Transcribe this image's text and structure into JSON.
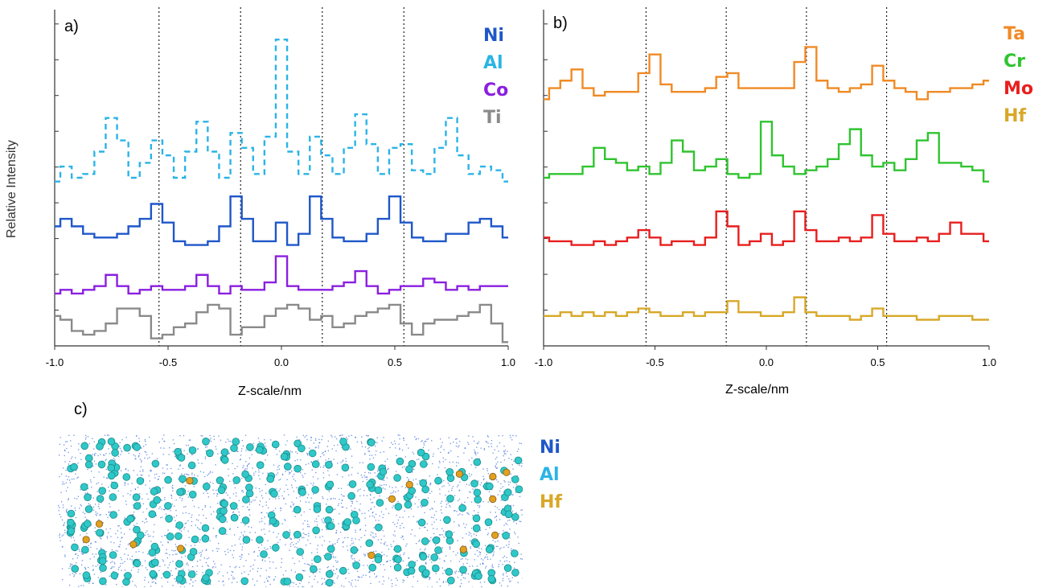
{
  "figure": {
    "panel_a_label": "a)",
    "panel_b_label": "b)",
    "panel_c_label": "c)",
    "ylabel": "Relative Intensity",
    "xlabel": "Z-scale/nm"
  },
  "colors": {
    "Ni": "#1f57c9",
    "Al": "#2ab4e6",
    "Co": "#8a1fe0",
    "Ti": "#8a8a8a",
    "Ta": "#f08a24",
    "Cr": "#2fc42f",
    "Mo": "#e81e1e",
    "Hf": "#d8a828",
    "atom_al": "#2fc8c8",
    "atom_hf": "#e0a020",
    "atom_ni": "#2f62d8"
  },
  "chart_data": [
    {
      "type": "line",
      "panel": "a)",
      "xlabel": "Z-scale/nm",
      "ylabel": "Relative Intensity",
      "xlim": [
        -1.0,
        1.0
      ],
      "x_ticks": [
        "-1.0",
        "-0.5",
        "0.0",
        "0.5",
        "1.0"
      ],
      "vlines": [
        -0.54,
        -0.18,
        0.18,
        0.54
      ],
      "legend": [
        "Ni",
        "Al",
        "Co",
        "Ti"
      ],
      "series": [
        {
          "name": "Al",
          "style": "dashed",
          "x": [
            -1.0,
            -0.95,
            -0.9,
            -0.85,
            -0.8,
            -0.75,
            -0.7,
            -0.65,
            -0.6,
            -0.55,
            -0.5,
            -0.45,
            -0.4,
            -0.35,
            -0.3,
            -0.25,
            -0.2,
            -0.15,
            -0.1,
            -0.05,
            0.0,
            0.05,
            0.1,
            0.15,
            0.2,
            0.25,
            0.3,
            0.35,
            0.4,
            0.45,
            0.5,
            0.55,
            0.6,
            0.65,
            0.7,
            0.75,
            0.8,
            0.85,
            0.9,
            0.95,
            1.0
          ],
          "y": [
            4.4,
            4.8,
            4.5,
            4.6,
            5.2,
            6.1,
            5.5,
            4.5,
            4.9,
            5.5,
            5.1,
            4.5,
            5.2,
            6.0,
            5.2,
            4.5,
            5.7,
            5.3,
            4.6,
            5.6,
            8.2,
            5.2,
            4.6,
            5.6,
            5.1,
            4.6,
            5.3,
            6.2,
            5.4,
            4.6,
            5.3,
            5.4,
            4.7,
            4.6,
            5.3,
            6.1,
            5.1,
            4.6,
            4.8,
            4.7,
            4.4
          ]
        },
        {
          "name": "Ni",
          "style": "solid",
          "x": [
            -1.0,
            -0.95,
            -0.9,
            -0.85,
            -0.8,
            -0.75,
            -0.7,
            -0.65,
            -0.6,
            -0.55,
            -0.5,
            -0.45,
            -0.4,
            -0.35,
            -0.3,
            -0.25,
            -0.2,
            -0.15,
            -0.1,
            -0.05,
            0.0,
            0.05,
            0.1,
            0.15,
            0.2,
            0.25,
            0.3,
            0.35,
            0.4,
            0.45,
            0.5,
            0.55,
            0.6,
            0.65,
            0.7,
            0.75,
            0.8,
            0.85,
            0.9,
            0.95,
            1.0
          ],
          "y": [
            3.2,
            3.4,
            3.2,
            3.0,
            2.9,
            2.9,
            3.0,
            3.2,
            3.4,
            3.8,
            3.3,
            2.8,
            2.7,
            2.7,
            2.8,
            3.2,
            4.0,
            3.4,
            2.8,
            2.8,
            3.3,
            2.7,
            3.0,
            4.0,
            3.4,
            2.9,
            2.8,
            2.8,
            3.0,
            3.4,
            4.0,
            3.3,
            2.9,
            2.8,
            2.8,
            3.0,
            3.0,
            3.3,
            3.4,
            3.2,
            2.9
          ]
        },
        {
          "name": "Co",
          "style": "solid",
          "x": [
            -1.0,
            -0.95,
            -0.9,
            -0.85,
            -0.8,
            -0.75,
            -0.7,
            -0.65,
            -0.6,
            -0.55,
            -0.5,
            -0.45,
            -0.4,
            -0.35,
            -0.3,
            -0.25,
            -0.2,
            -0.15,
            -0.1,
            -0.05,
            0.0,
            0.05,
            0.1,
            0.15,
            0.2,
            0.25,
            0.3,
            0.35,
            0.4,
            0.45,
            0.5,
            0.55,
            0.6,
            0.65,
            0.7,
            0.75,
            0.8,
            0.85,
            0.9,
            0.95,
            1.0
          ],
          "y": [
            1.4,
            1.5,
            1.4,
            1.5,
            1.6,
            1.9,
            1.6,
            1.4,
            1.5,
            1.6,
            1.5,
            1.5,
            1.6,
            1.9,
            1.6,
            1.4,
            1.6,
            1.5,
            1.5,
            1.7,
            2.4,
            1.6,
            1.5,
            1.5,
            1.5,
            1.6,
            1.7,
            2.0,
            1.6,
            1.4,
            1.5,
            1.6,
            1.6,
            1.8,
            1.7,
            1.5,
            1.6,
            1.5,
            1.6,
            1.6,
            1.6
          ]
        },
        {
          "name": "Ti",
          "style": "solid",
          "x": [
            -1.0,
            -0.95,
            -0.9,
            -0.85,
            -0.8,
            -0.75,
            -0.7,
            -0.65,
            -0.6,
            -0.55,
            -0.5,
            -0.45,
            -0.4,
            -0.35,
            -0.3,
            -0.25,
            -0.2,
            -0.15,
            -0.1,
            -0.05,
            0.0,
            0.05,
            0.1,
            0.15,
            0.2,
            0.25,
            0.3,
            0.35,
            0.4,
            0.45,
            0.5,
            0.55,
            0.6,
            0.65,
            0.7,
            0.75,
            0.8,
            0.85,
            0.9,
            0.95,
            1.0
          ],
          "y": [
            0.8,
            0.7,
            0.4,
            0.3,
            0.4,
            0.6,
            1.0,
            1.0,
            0.8,
            0.2,
            0.3,
            0.5,
            0.6,
            0.9,
            1.1,
            1.0,
            0.3,
            0.5,
            0.5,
            0.8,
            1.0,
            1.1,
            1.0,
            0.7,
            0.8,
            0.5,
            0.6,
            0.8,
            0.9,
            1.0,
            1.1,
            0.6,
            0.3,
            0.6,
            0.7,
            0.7,
            0.8,
            0.9,
            1.1,
            0.6,
            0.1
          ]
        }
      ]
    },
    {
      "type": "line",
      "panel": "b)",
      "xlabel": "Z-scale/nm",
      "xlim": [
        -1.0,
        1.0
      ],
      "x_ticks": [
        "-1.0",
        "-0.5",
        "0.0",
        "0.5",
        "1.0"
      ],
      "vlines": [
        -0.54,
        -0.18,
        0.18,
        0.54
      ],
      "legend": [
        "Ta",
        "Cr",
        "Mo",
        "Hf"
      ],
      "series": [
        {
          "name": "Ta",
          "x": [
            -1.0,
            -0.95,
            -0.9,
            -0.85,
            -0.8,
            -0.75,
            -0.7,
            -0.65,
            -0.6,
            -0.55,
            -0.5,
            -0.45,
            -0.4,
            -0.35,
            -0.3,
            -0.25,
            -0.2,
            -0.15,
            -0.1,
            -0.05,
            0.0,
            0.05,
            0.1,
            0.15,
            0.2,
            0.25,
            0.3,
            0.35,
            0.4,
            0.45,
            0.5,
            0.55,
            0.6,
            0.65,
            0.7,
            0.75,
            0.8,
            0.85,
            0.9,
            0.95,
            1.0
          ],
          "y": [
            6.6,
            6.9,
            7.1,
            7.4,
            6.9,
            6.7,
            6.8,
            6.8,
            6.8,
            7.3,
            7.8,
            7.0,
            6.8,
            6.8,
            6.8,
            6.9,
            7.2,
            7.3,
            6.9,
            6.9,
            6.9,
            6.9,
            6.9,
            7.6,
            8.0,
            7.1,
            6.9,
            6.8,
            6.9,
            7.0,
            7.5,
            7.1,
            6.9,
            6.8,
            6.6,
            6.8,
            6.8,
            6.9,
            6.9,
            7.0,
            7.1
          ]
        },
        {
          "name": "Cr",
          "x": [
            -1.0,
            -0.95,
            -0.9,
            -0.85,
            -0.8,
            -0.75,
            -0.7,
            -0.65,
            -0.6,
            -0.55,
            -0.5,
            -0.45,
            -0.4,
            -0.35,
            -0.3,
            -0.25,
            -0.2,
            -0.15,
            -0.1,
            -0.05,
            0.0,
            0.05,
            0.1,
            0.15,
            0.2,
            0.25,
            0.3,
            0.35,
            0.4,
            0.45,
            0.5,
            0.55,
            0.6,
            0.65,
            0.7,
            0.75,
            0.8,
            0.85,
            0.9,
            0.95,
            1.0
          ],
          "y": [
            4.5,
            4.6,
            4.6,
            4.6,
            4.8,
            5.3,
            5.0,
            4.9,
            4.7,
            4.8,
            4.6,
            4.9,
            5.5,
            5.2,
            4.7,
            4.8,
            5.0,
            4.6,
            4.5,
            4.6,
            6.0,
            5.1,
            4.8,
            4.6,
            4.7,
            4.8,
            5.0,
            5.4,
            5.8,
            5.1,
            4.8,
            4.9,
            4.7,
            5.0,
            5.5,
            5.7,
            4.9,
            4.9,
            4.8,
            4.7,
            4.4
          ]
        },
        {
          "name": "Mo",
          "x": [
            -1.0,
            -0.95,
            -0.9,
            -0.85,
            -0.8,
            -0.75,
            -0.7,
            -0.65,
            -0.6,
            -0.55,
            -0.5,
            -0.45,
            -0.4,
            -0.35,
            -0.3,
            -0.25,
            -0.2,
            -0.15,
            -0.1,
            -0.05,
            0.0,
            0.05,
            0.1,
            0.15,
            0.2,
            0.25,
            0.3,
            0.35,
            0.4,
            0.45,
            0.5,
            0.55,
            0.6,
            0.65,
            0.7,
            0.75,
            0.8,
            0.85,
            0.9,
            0.95,
            1.0
          ],
          "y": [
            2.9,
            2.8,
            2.8,
            2.7,
            2.7,
            2.8,
            2.7,
            2.8,
            2.9,
            3.1,
            2.9,
            2.7,
            2.8,
            2.8,
            2.7,
            2.9,
            3.6,
            3.2,
            2.7,
            2.8,
            3.0,
            2.7,
            2.8,
            3.6,
            3.1,
            2.8,
            2.8,
            2.9,
            2.8,
            2.9,
            3.5,
            3.0,
            2.8,
            2.8,
            2.9,
            2.8,
            3.0,
            3.3,
            3.0,
            3.0,
            2.8
          ]
        },
        {
          "name": "Hf",
          "x": [
            -1.0,
            -0.95,
            -0.9,
            -0.85,
            -0.8,
            -0.75,
            -0.7,
            -0.65,
            -0.6,
            -0.55,
            -0.5,
            -0.45,
            -0.4,
            -0.35,
            -0.3,
            -0.25,
            -0.2,
            -0.15,
            -0.1,
            -0.05,
            0.0,
            0.05,
            0.1,
            0.15,
            0.2,
            0.25,
            0.3,
            0.35,
            0.4,
            0.45,
            0.5,
            0.55,
            0.6,
            0.65,
            0.7,
            0.75,
            0.8,
            0.85,
            0.9,
            0.95,
            1.0
          ],
          "y": [
            0.8,
            0.8,
            0.9,
            0.8,
            0.9,
            0.8,
            0.9,
            0.8,
            0.9,
            1.0,
            0.9,
            0.8,
            0.8,
            0.9,
            0.8,
            0.9,
            0.9,
            1.2,
            0.9,
            0.9,
            0.8,
            0.8,
            0.9,
            1.3,
            0.9,
            0.8,
            0.8,
            0.8,
            0.7,
            0.8,
            1.0,
            0.8,
            0.8,
            0.8,
            0.7,
            0.7,
            0.8,
            0.8,
            0.8,
            0.7,
            0.7
          ]
        }
      ]
    }
  ],
  "atom_map": {
    "panel": "c)",
    "legend": [
      "Ni",
      "Al",
      "Hf"
    ]
  }
}
